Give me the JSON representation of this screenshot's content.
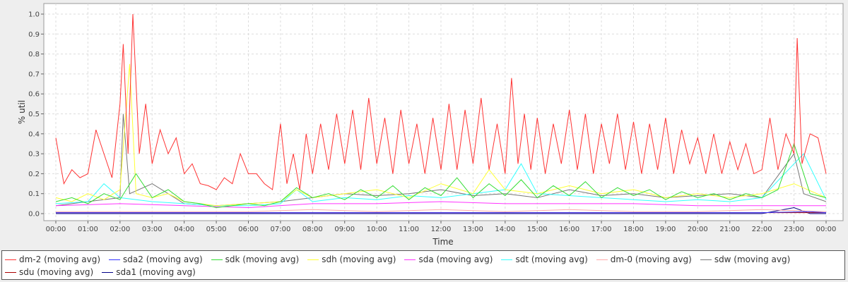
{
  "chart_data": {
    "type": "line",
    "title": "",
    "xlabel": "Time",
    "ylabel": "% util",
    "ylim": [
      0,
      1.05
    ],
    "xlim": [
      0,
      24
    ],
    "grid": true,
    "legend_position": "bottom",
    "y_ticks": [
      "0.0",
      "0.1",
      "0.2",
      "0.3",
      "0.4",
      "0.5",
      "0.6",
      "0.7",
      "0.8",
      "0.9",
      "1.0"
    ],
    "x_ticks": [
      "00:00",
      "01:00",
      "02:00",
      "03:00",
      "04:00",
      "05:00",
      "06:00",
      "07:00",
      "08:00",
      "09:00",
      "10:00",
      "11:00",
      "12:00",
      "13:00",
      "14:00",
      "15:00",
      "16:00",
      "17:00",
      "18:00",
      "19:00",
      "20:00",
      "21:00",
      "22:00",
      "23:00",
      "00:00"
    ],
    "series": [
      {
        "name": "dm-2 (moving avg)",
        "color": "#ff3333",
        "x": [
          0,
          0.25,
          0.5,
          0.75,
          1,
          1.25,
          1.5,
          1.75,
          2,
          2.1,
          2.25,
          2.4,
          2.6,
          2.8,
          3,
          3.25,
          3.5,
          3.75,
          4,
          4.25,
          4.5,
          4.75,
          5,
          5.25,
          5.5,
          5.75,
          6,
          6.25,
          6.5,
          6.75,
          7,
          7.2,
          7.4,
          7.6,
          7.8,
          8,
          8.25,
          8.5,
          8.75,
          9,
          9.25,
          9.5,
          9.75,
          10,
          10.25,
          10.5,
          10.75,
          11,
          11.25,
          11.5,
          11.75,
          12,
          12.25,
          12.5,
          12.75,
          13,
          13.25,
          13.5,
          13.75,
          14,
          14.2,
          14.4,
          14.6,
          14.8,
          15,
          15.25,
          15.5,
          15.75,
          16,
          16.25,
          16.5,
          16.75,
          17,
          17.25,
          17.5,
          17.75,
          18,
          18.25,
          18.5,
          18.75,
          19,
          19.25,
          19.5,
          19.75,
          20,
          20.25,
          20.5,
          20.75,
          21,
          21.25,
          21.5,
          21.75,
          22,
          22.25,
          22.5,
          22.75,
          23,
          23.1,
          23.25,
          23.5,
          23.75,
          24
        ],
        "y": [
          0.38,
          0.15,
          0.22,
          0.18,
          0.2,
          0.42,
          0.3,
          0.18,
          0.55,
          0.85,
          0.3,
          1.0,
          0.3,
          0.55,
          0.25,
          0.42,
          0.3,
          0.38,
          0.2,
          0.25,
          0.15,
          0.14,
          0.12,
          0.18,
          0.15,
          0.3,
          0.2,
          0.2,
          0.15,
          0.12,
          0.45,
          0.15,
          0.3,
          0.12,
          0.4,
          0.2,
          0.45,
          0.22,
          0.5,
          0.25,
          0.52,
          0.22,
          0.58,
          0.25,
          0.48,
          0.2,
          0.52,
          0.25,
          0.45,
          0.2,
          0.48,
          0.22,
          0.55,
          0.22,
          0.52,
          0.25,
          0.58,
          0.22,
          0.45,
          0.2,
          0.68,
          0.25,
          0.5,
          0.22,
          0.48,
          0.2,
          0.45,
          0.25,
          0.52,
          0.22,
          0.5,
          0.2,
          0.45,
          0.25,
          0.5,
          0.22,
          0.46,
          0.2,
          0.45,
          0.22,
          0.48,
          0.2,
          0.42,
          0.25,
          0.38,
          0.2,
          0.4,
          0.2,
          0.36,
          0.22,
          0.35,
          0.2,
          0.22,
          0.48,
          0.22,
          0.4,
          0.3,
          0.88,
          0.25,
          0.4,
          0.38,
          0.2
        ]
      },
      {
        "name": "sda2 (moving avg)",
        "color": "#3333ff",
        "x": [
          0,
          2,
          4,
          6,
          8,
          10,
          12,
          14,
          16,
          18,
          20,
          22,
          23.5,
          24
        ],
        "y": [
          0.005,
          0.005,
          0.005,
          0.005,
          0.005,
          0.005,
          0.005,
          0.005,
          0.005,
          0.005,
          0.005,
          0.005,
          0.01,
          0.005
        ]
      },
      {
        "name": "sdk (moving avg)",
        "color": "#33dd33",
        "x": [
          0,
          0.5,
          1,
          1.5,
          2,
          2.5,
          3,
          3.5,
          4,
          4.5,
          5,
          5.5,
          6,
          6.5,
          7,
          7.5,
          8,
          8.5,
          9,
          9.5,
          10,
          10.5,
          11,
          11.5,
          12,
          12.5,
          13,
          13.5,
          14,
          14.5,
          15,
          15.5,
          16,
          16.5,
          17,
          17.5,
          18,
          18.5,
          19,
          19.5,
          20,
          20.5,
          21,
          21.5,
          22,
          22.5,
          23,
          23.5,
          24
        ],
        "y": [
          0.06,
          0.08,
          0.05,
          0.1,
          0.07,
          0.2,
          0.08,
          0.12,
          0.06,
          0.05,
          0.03,
          0.04,
          0.05,
          0.04,
          0.06,
          0.13,
          0.08,
          0.1,
          0.07,
          0.12,
          0.08,
          0.14,
          0.07,
          0.13,
          0.09,
          0.18,
          0.08,
          0.15,
          0.09,
          0.17,
          0.08,
          0.14,
          0.09,
          0.16,
          0.08,
          0.13,
          0.09,
          0.12,
          0.07,
          0.11,
          0.08,
          0.1,
          0.07,
          0.1,
          0.08,
          0.12,
          0.35,
          0.1,
          0.08
        ]
      },
      {
        "name": "sdh (moving avg)",
        "color": "#ffff33",
        "x": [
          0,
          0.5,
          1,
          1.5,
          2,
          2.3,
          2.5,
          3,
          3.5,
          4,
          5,
          6,
          7,
          7.5,
          8,
          9,
          10,
          11,
          12,
          13,
          13.5,
          14,
          15,
          16,
          17,
          18,
          19,
          20,
          21,
          22,
          23,
          24
        ],
        "y": [
          0.08,
          0.06,
          0.1,
          0.07,
          0.12,
          0.75,
          0.1,
          0.08,
          0.1,
          0.06,
          0.04,
          0.05,
          0.06,
          0.12,
          0.08,
          0.1,
          0.12,
          0.08,
          0.15,
          0.1,
          0.22,
          0.12,
          0.1,
          0.14,
          0.1,
          0.12,
          0.08,
          0.1,
          0.08,
          0.1,
          0.15,
          0.08
        ]
      },
      {
        "name": "sda (moving avg)",
        "color": "#ff33ff",
        "x": [
          0,
          2,
          4,
          6,
          8,
          10,
          12,
          14,
          16,
          18,
          20,
          22,
          24
        ],
        "y": [
          0.04,
          0.05,
          0.04,
          0.03,
          0.05,
          0.05,
          0.06,
          0.05,
          0.05,
          0.05,
          0.04,
          0.04,
          0.04
        ]
      },
      {
        "name": "sdt (moving avg)",
        "color": "#33ffff",
        "x": [
          0,
          1,
          1.5,
          2,
          3,
          4,
          5,
          6,
          7,
          7.5,
          8,
          9,
          10,
          11,
          12,
          13,
          14,
          14.5,
          15,
          16,
          17,
          18,
          19,
          20,
          21,
          22,
          23,
          23.3,
          24
        ],
        "y": [
          0.05,
          0.06,
          0.15,
          0.08,
          0.06,
          0.05,
          0.04,
          0.04,
          0.05,
          0.12,
          0.06,
          0.08,
          0.07,
          0.09,
          0.08,
          0.1,
          0.12,
          0.25,
          0.1,
          0.09,
          0.08,
          0.07,
          0.06,
          0.07,
          0.06,
          0.08,
          0.25,
          0.3,
          0.07
        ]
      },
      {
        "name": "dm-0 (moving avg)",
        "color": "#ffaaaa",
        "x": [
          0,
          2,
          4,
          6,
          8,
          10,
          12,
          14,
          16,
          18,
          20,
          22,
          24
        ],
        "y": [
          0.01,
          0.01,
          0.01,
          0.01,
          0.02,
          0.01,
          0.02,
          0.01,
          0.02,
          0.01,
          0.01,
          0.02,
          0.01
        ]
      },
      {
        "name": "sdw (moving avg)",
        "color": "#777777",
        "x": [
          0,
          1,
          2,
          2.1,
          2.3,
          3,
          4,
          5,
          6,
          7,
          8,
          9,
          10,
          11,
          12,
          13,
          14,
          15,
          16,
          17,
          18,
          19,
          20,
          21,
          22,
          23,
          23.3,
          24
        ],
        "y": [
          0.04,
          0.06,
          0.08,
          0.5,
          0.1,
          0.15,
          0.05,
          0.04,
          0.05,
          0.06,
          0.08,
          0.1,
          0.09,
          0.1,
          0.12,
          0.09,
          0.1,
          0.08,
          0.12,
          0.09,
          0.1,
          0.08,
          0.09,
          0.1,
          0.08,
          0.3,
          0.1,
          0.06
        ]
      },
      {
        "name": "sdu (moving avg)",
        "color": "#aa0000",
        "x": [
          0,
          4,
          8,
          12,
          16,
          20,
          24
        ],
        "y": [
          0.005,
          0.005,
          0.005,
          0.005,
          0.005,
          0.005,
          0.005
        ]
      },
      {
        "name": "sda1 (moving avg)",
        "color": "#000088",
        "x": [
          0,
          4,
          8,
          12,
          16,
          20,
          22,
          23,
          23.5,
          24
        ],
        "y": [
          0.0,
          0.0,
          0.0,
          0.0,
          0.0,
          0.0,
          0.0,
          0.03,
          0.0,
          0.0
        ]
      }
    ]
  }
}
